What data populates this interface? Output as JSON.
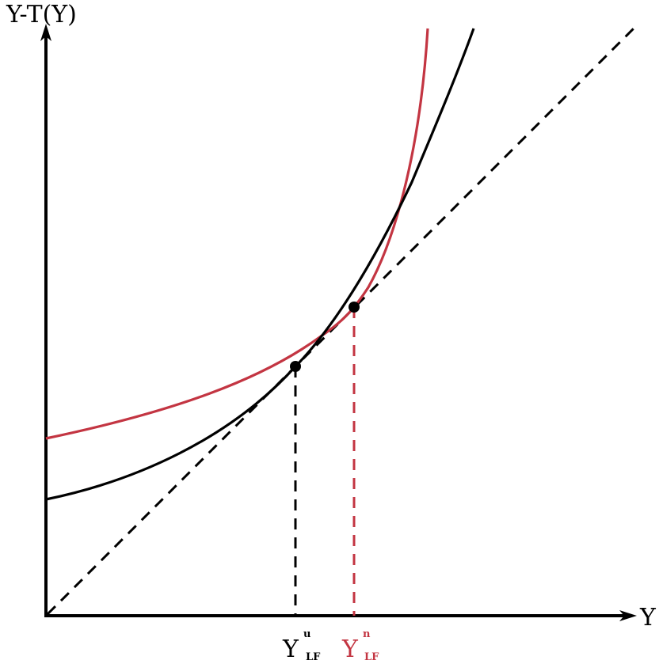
{
  "axes": {
    "y_label": "Y-T(Y)",
    "x_label": "Y"
  },
  "markers": {
    "u": {
      "main": "Y",
      "sup": "u",
      "sub": "LF"
    },
    "n": {
      "main": "Y",
      "sup": "n",
      "sub": "LF"
    }
  },
  "colors": {
    "black_curve": "#000000",
    "red_curve": "#c33542",
    "axis": "#000000",
    "dashed": "#000000"
  }
}
